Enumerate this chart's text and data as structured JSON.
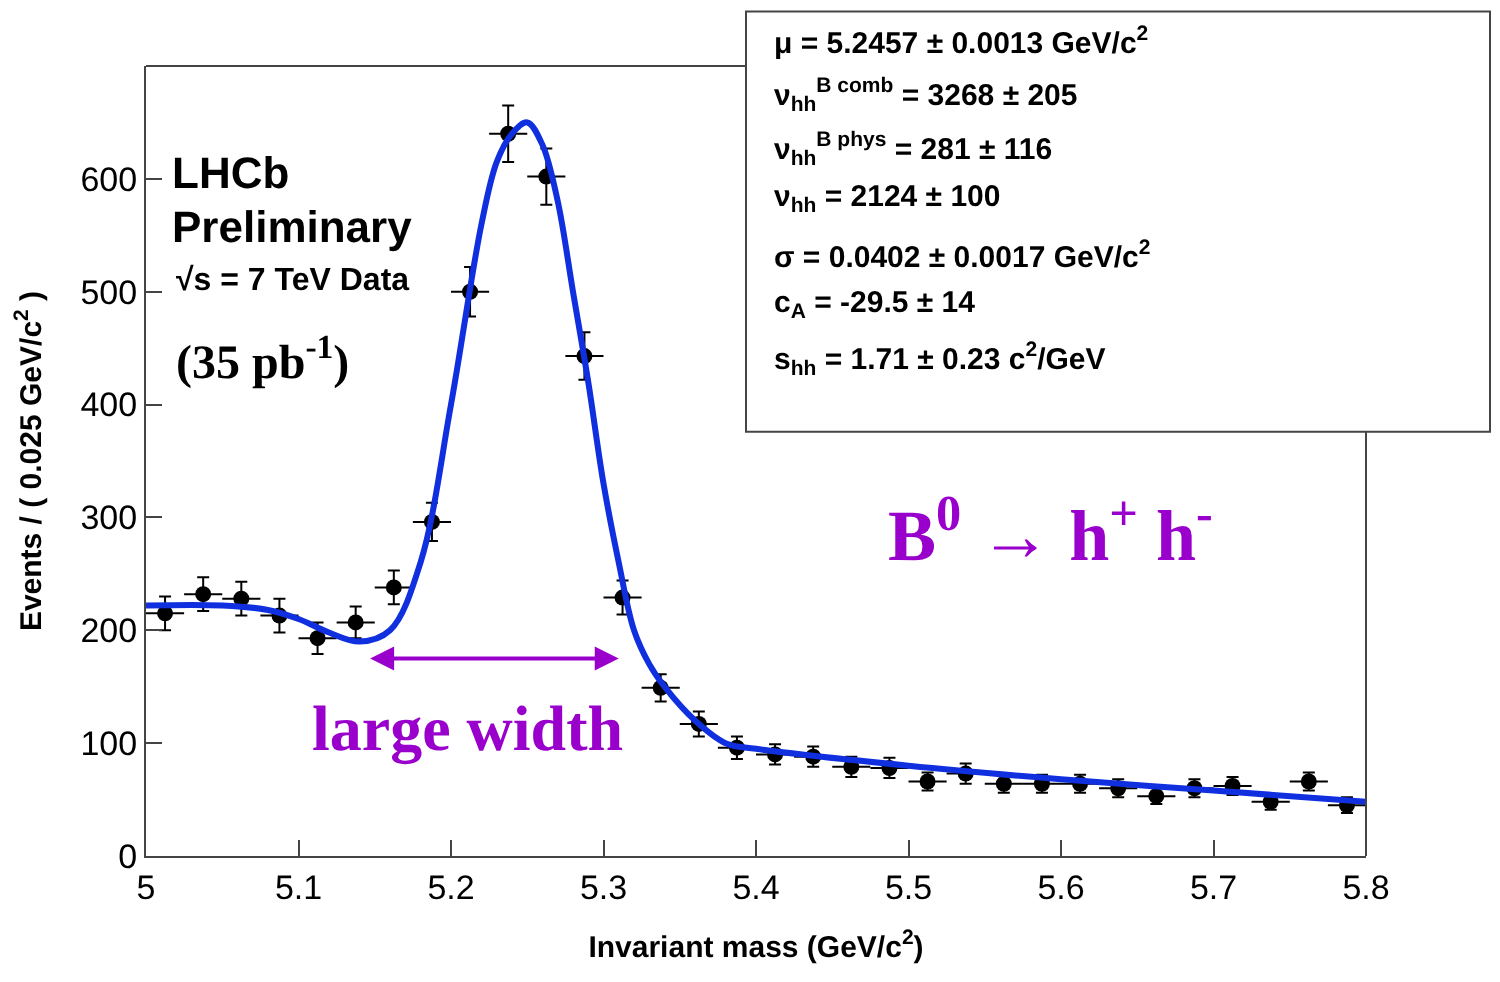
{
  "chart_data": {
    "type": "scatter",
    "xlabel": "Invariant mass (GeV/c$^{2}$)",
    "ylabel": "Events / ( 0.025 GeV/c$^{2}$ )",
    "xlim": [
      5,
      5.8
    ],
    "xticks": [
      5,
      5.1,
      5.2,
      5.3,
      5.4,
      5.5,
      5.6,
      5.7,
      5.8
    ],
    "ylim": [
      0,
      700
    ],
    "yticks": [
      0,
      100,
      200,
      300,
      400,
      500,
      600
    ],
    "grid": false,
    "legend": false,
    "marker": "circle",
    "series": [
      {
        "color": "#000000",
        "x": [
          5.0125,
          5.0375,
          5.0625,
          5.0875,
          5.1125,
          5.1375,
          5.1625,
          5.1875,
          5.2125,
          5.2375,
          5.2625,
          5.2875,
          5.3125,
          5.3375,
          5.3625,
          5.3875,
          5.4125,
          5.4375,
          5.4625,
          5.4875,
          5.5125,
          5.5375,
          5.5625,
          5.5875,
          5.6125,
          5.6375,
          5.6625,
          5.6875,
          5.7125,
          5.7375,
          5.7625,
          5.7875
        ],
        "values": [
          215,
          232,
          228,
          213,
          193,
          207,
          238,
          296,
          500,
          640,
          602,
          443,
          229,
          149,
          117,
          96,
          90,
          88,
          79,
          78,
          66,
          73,
          64,
          64,
          64,
          60,
          53,
          60,
          62,
          48,
          66,
          45
        ],
        "errors": [
          15,
          15,
          15,
          15,
          14,
          14,
          15,
          17,
          22,
          25,
          25,
          21,
          15,
          12,
          11,
          10,
          9,
          9,
          9,
          9,
          8,
          9,
          8,
          8,
          8,
          8,
          7,
          8,
          8,
          7,
          8,
          7
        ],
        "xerrors": [
          0.0125,
          0.0125,
          0.0125,
          0.0125,
          0.0125,
          0.0125,
          0.0125,
          0.0125,
          0.0125,
          0.0125,
          0.0125,
          0.0125,
          0.0125,
          0.0125,
          0.0125,
          0.0125,
          0.0125,
          0.0125,
          0.0125,
          0.0125,
          0.0125,
          0.0125,
          0.0125,
          0.0125,
          0.0125,
          0.0125,
          0.0125,
          0.0125,
          0.0125,
          0.0125,
          0.0125,
          0.0125
        ]
      },
      {
        "type": "line",
        "color": "#1030e0",
        "marker": "none",
        "line_style": "solid",
        "x": [
          5.0,
          5.05,
          5.08,
          5.1,
          5.12,
          5.14,
          5.16,
          5.18,
          5.2,
          5.22,
          5.23,
          5.24,
          5.25,
          5.26,
          5.27,
          5.28,
          5.29,
          5.3,
          5.31,
          5.32,
          5.33,
          5.34,
          5.36,
          5.38,
          5.4,
          5.5,
          5.6,
          5.7,
          5.8
        ],
        "values": [
          222,
          222,
          218,
          210,
          198,
          190,
          200,
          260,
          400,
          560,
          615,
          640,
          650,
          630,
          580,
          500,
          420,
          330,
          260,
          200,
          170,
          150,
          120,
          100,
          95,
          80,
          68,
          58,
          48
        ]
      }
    ],
    "annotations": [
      "LHCb",
      "Preliminary",
      "√s = 7 TeV Data",
      "(35 pb$^{-1}$)",
      "B$^{0}$ → h$^{+}$ h$^{-}$",
      "large width",
      "μ = 5.2457 ± 0.0013 GeV/c$^{2}$",
      "ν$_{hh}$$^{B comb}$ = 3268 ± 205",
      "ν$_{hh}$$^{B phys}$ = 281 ± 116",
      "ν$_{hh}$ = 2124 ± 100",
      "σ = 0.0402 ± 0.0017 GeV/c$^{2}$",
      "c$_{A}$ = -29.5 ± 14",
      "s$_{hh}$ = 1.71 ± 0.23 c$^{2}$/GeV"
    ]
  }
}
